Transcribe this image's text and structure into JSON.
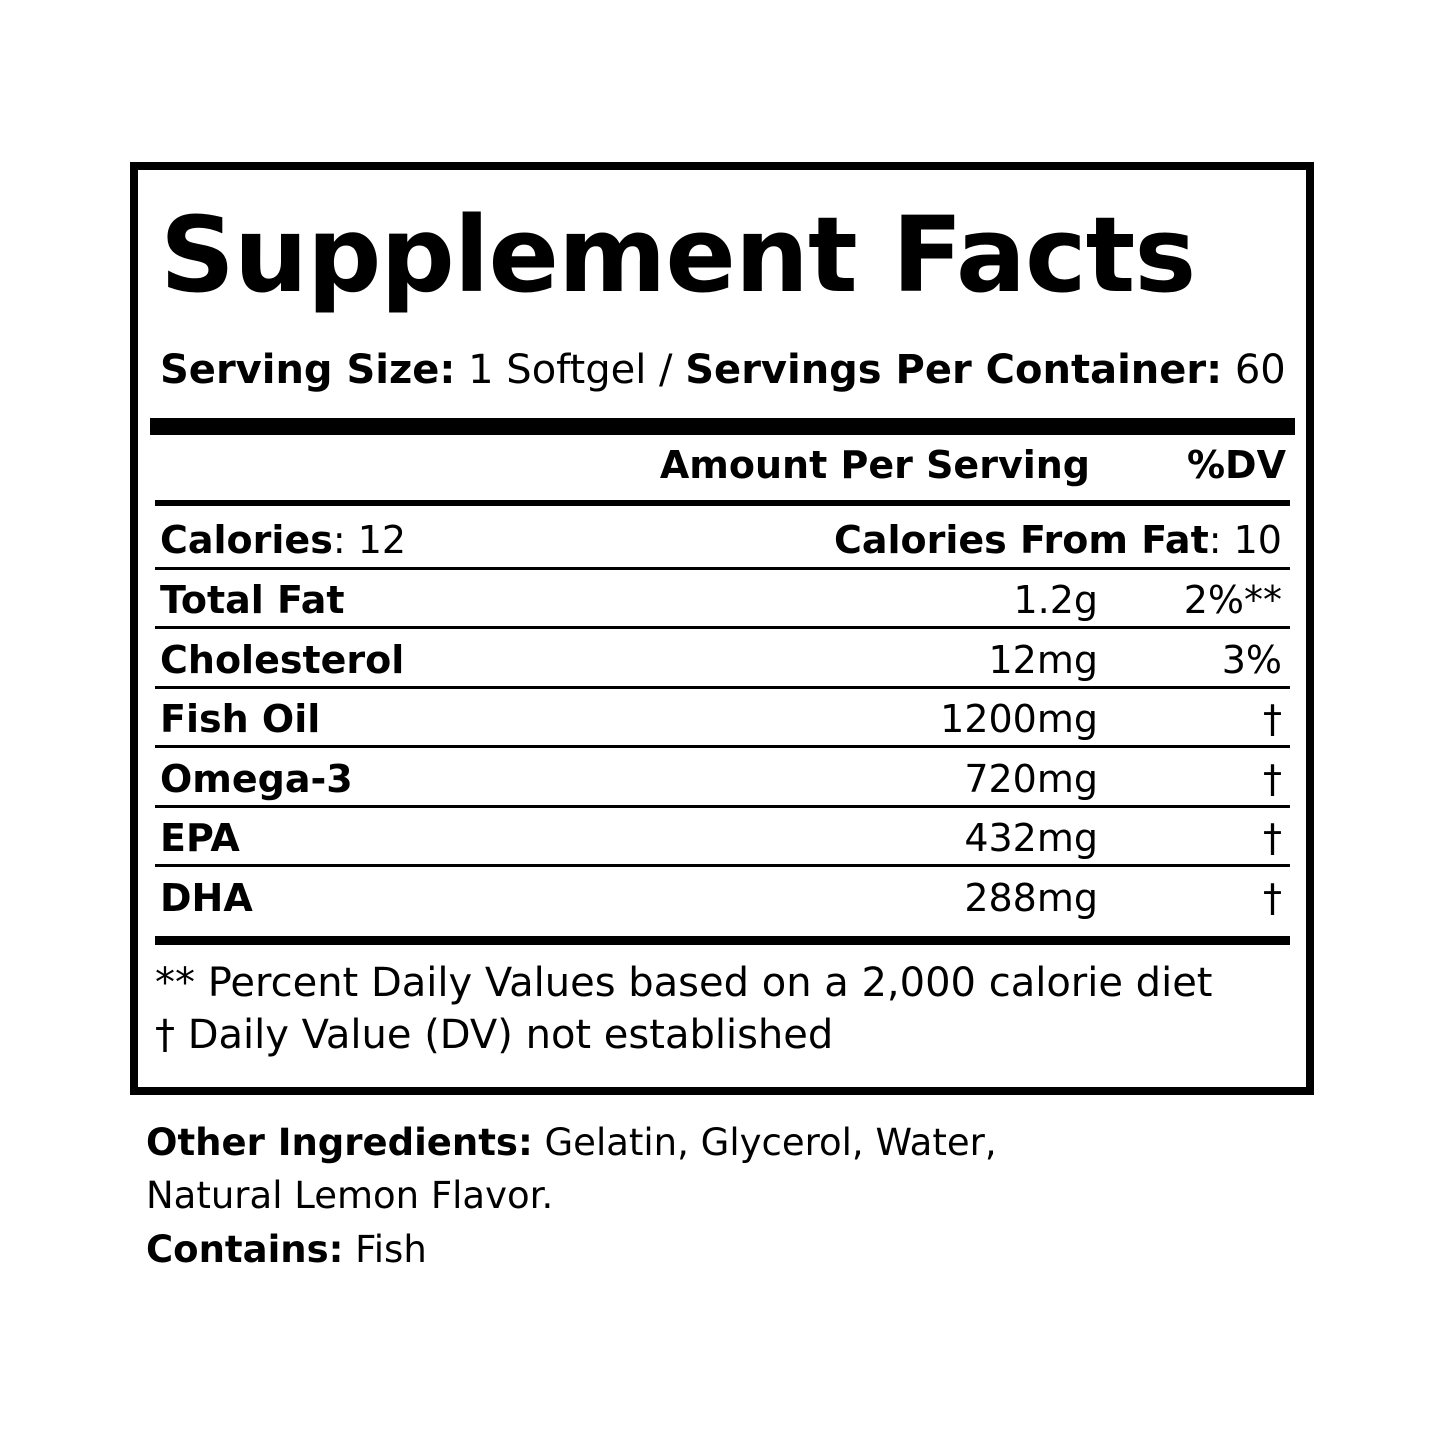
{
  "title": "Supplement Facts",
  "serving": {
    "size_label": "Serving Size:",
    "size_value": " 1 Softgel / ",
    "per_container_label": "Servings Per Container:",
    "per_container_value": " 60"
  },
  "header": {
    "amount": "Amount Per Serving",
    "dv": "%DV"
  },
  "calories": {
    "label": "Calories",
    "value": ": 12",
    "fat_label": "Calories From Fat",
    "fat_value": ": 10"
  },
  "rows": [
    {
      "name": "Total Fat",
      "amount": "1.2g",
      "dv": "2%**"
    },
    {
      "name": "Cholesterol",
      "amount": "12mg",
      "dv": "3%"
    },
    {
      "name": "Fish Oil",
      "amount": "1200mg",
      "dv": "†"
    },
    {
      "name": "Omega-3",
      "amount": "720mg",
      "dv": "†"
    },
    {
      "name": "EPA",
      "amount": "432mg",
      "dv": "†"
    },
    {
      "name": "DHA",
      "amount": "288mg",
      "dv": "†"
    }
  ],
  "footnotes": [
    "** Percent Daily Values based on a 2,000 calorie diet",
    "† Daily Value (DV) not established"
  ],
  "other_ingredients": {
    "label": "Other Ingredients:",
    "line1": " Gelatin, Glycerol, Water,",
    "line2": "Natural Lemon Flavor.",
    "contains_label": "Contains:",
    "contains_value": " Fish"
  }
}
